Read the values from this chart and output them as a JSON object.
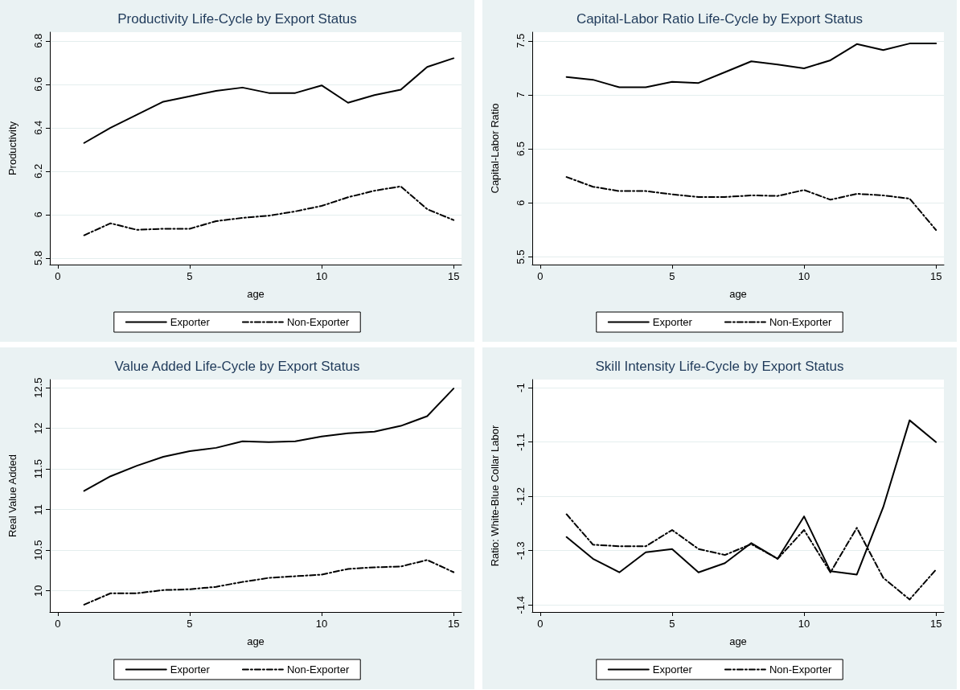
{
  "chart_data": [
    {
      "type": "line",
      "title": "Productivity Life-Cycle by Export Status",
      "xlabel": "age",
      "ylabel": "Productivity",
      "x": [
        1,
        2,
        3,
        4,
        5,
        6,
        7,
        8,
        9,
        10,
        11,
        12,
        13,
        14,
        15
      ],
      "xlim": [
        -0.3,
        15.3
      ],
      "xticks": [
        0,
        5,
        10,
        15
      ],
      "ylim": [
        5.77,
        6.84
      ],
      "yticks": [
        5.8,
        6,
        6.2,
        6.4,
        6.6,
        6.8
      ],
      "grid": "y",
      "legend": "bottom",
      "marker": "none",
      "series": [
        {
          "name": "Exporter",
          "color": "#000000",
          "line_style": "solid",
          "values": [
            6.33,
            6.4,
            6.46,
            6.52,
            6.545,
            6.57,
            6.585,
            6.56,
            6.56,
            6.595,
            6.515,
            6.55,
            6.575,
            6.68,
            6.72
          ]
        },
        {
          "name": "Non-Exporter",
          "color": "#000000",
          "line_style": "dashed",
          "values": [
            5.905,
            5.96,
            5.93,
            5.935,
            5.935,
            5.97,
            5.985,
            5.995,
            6.015,
            6.04,
            6.08,
            6.11,
            6.13,
            6.025,
            5.975
          ]
        }
      ]
    },
    {
      "type": "line",
      "title": "Capital-Labor Ratio Life-Cycle by Export Status",
      "xlabel": "age",
      "ylabel": "Capital-Labor Ratio",
      "x": [
        1,
        2,
        3,
        4,
        5,
        6,
        7,
        8,
        9,
        10,
        11,
        12,
        13,
        14,
        15
      ],
      "xlim": [
        -0.3,
        15.3
      ],
      "xticks": [
        0,
        5,
        10,
        15
      ],
      "ylim": [
        5.43,
        7.58
      ],
      "yticks": [
        5.5,
        6,
        6.5,
        7,
        7.5
      ],
      "grid": "y",
      "legend": "bottom",
      "marker": "none",
      "series": [
        {
          "name": "Exporter",
          "color": "#000000",
          "line_style": "solid",
          "values": [
            7.165,
            7.14,
            7.07,
            7.07,
            7.12,
            7.11,
            7.21,
            7.31,
            7.28,
            7.245,
            7.32,
            7.47,
            7.415,
            7.475,
            7.475
          ]
        },
        {
          "name": "Non-Exporter",
          "color": "#000000",
          "line_style": "dashed",
          "values": [
            6.24,
            6.15,
            6.11,
            6.11,
            6.08,
            6.055,
            6.055,
            6.07,
            6.065,
            6.12,
            6.03,
            6.085,
            6.07,
            6.04,
            5.75
          ]
        }
      ]
    },
    {
      "type": "line",
      "title": "Value Added Life-Cycle by Export Status",
      "xlabel": "age",
      "ylabel": "Real Value Added",
      "x": [
        1,
        2,
        3,
        4,
        5,
        6,
        7,
        8,
        9,
        10,
        11,
        12,
        13,
        14,
        15
      ],
      "xlim": [
        -0.3,
        15.3
      ],
      "xticks": [
        0,
        5,
        10,
        15
      ],
      "ylim": [
        9.74,
        12.6
      ],
      "yticks": [
        10,
        10.5,
        11,
        11.5,
        12,
        12.5
      ],
      "grid": "y",
      "legend": "bottom",
      "marker": "none",
      "series": [
        {
          "name": "Exporter",
          "color": "#000000",
          "line_style": "solid",
          "values": [
            11.23,
            11.41,
            11.54,
            11.65,
            11.72,
            11.76,
            11.84,
            11.83,
            11.84,
            11.9,
            11.94,
            11.96,
            12.03,
            12.15,
            12.49
          ]
        },
        {
          "name": "Non-Exporter",
          "color": "#000000",
          "line_style": "dashed",
          "values": [
            9.83,
            9.97,
            9.97,
            10.01,
            10.02,
            10.05,
            10.11,
            10.16,
            10.18,
            10.2,
            10.27,
            10.29,
            10.3,
            10.38,
            10.23
          ]
        }
      ]
    },
    {
      "type": "line",
      "title": "Skill Intensity Life-Cycle by Export Status",
      "xlabel": "age",
      "ylabel": "Ratio: White-Blue Collar Labor",
      "x": [
        1,
        2,
        3,
        4,
        5,
        6,
        7,
        8,
        9,
        10,
        11,
        12,
        13,
        14,
        15
      ],
      "xlim": [
        -0.3,
        15.3
      ],
      "xticks": [
        0,
        5,
        10,
        15
      ],
      "ylim": [
        -1.413,
        -0.985
      ],
      "yticks": [
        -1.4,
        -1.3,
        -1.2,
        -1.1,
        -1
      ],
      "grid": "y",
      "legend": "bottom",
      "marker": "none",
      "series": [
        {
          "name": "Exporter",
          "color": "#000000",
          "line_style": "solid",
          "values": [
            -1.275,
            -1.315,
            -1.34,
            -1.303,
            -1.297,
            -1.34,
            -1.323,
            -1.286,
            -1.315,
            -1.237,
            -1.338,
            -1.344,
            -1.22,
            -1.06,
            -1.1
          ]
        },
        {
          "name": "Non-Exporter",
          "color": "#000000",
          "line_style": "dashed",
          "values": [
            -1.233,
            -1.289,
            -1.292,
            -1.292,
            -1.262,
            -1.297,
            -1.308,
            -1.288,
            -1.315,
            -1.262,
            -1.34,
            -1.258,
            -1.35,
            -1.39,
            -1.335
          ]
        }
      ]
    }
  ]
}
